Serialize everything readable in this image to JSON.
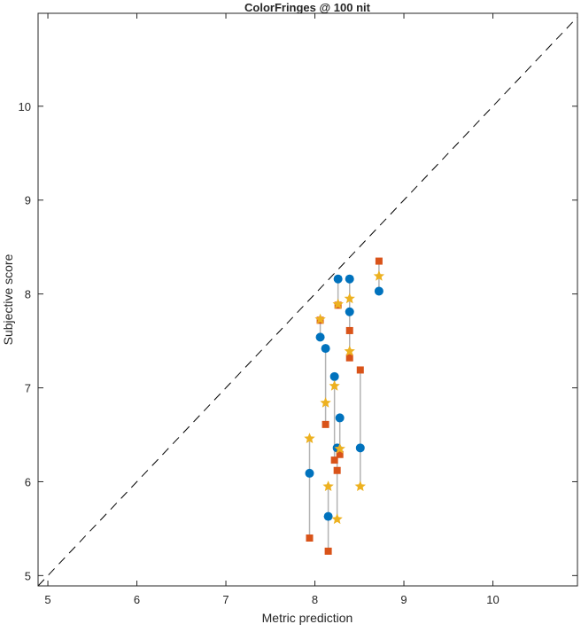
{
  "chart_data": {
    "type": "scatter",
    "title": "ColorFringes @ 100 nit",
    "xlabel": "Metric prediction",
    "ylabel": "Subjective score",
    "xlim": [
      4.89,
      10.95
    ],
    "ylim": [
      4.89,
      10.99
    ],
    "xticks": [
      "5",
      "6",
      "7",
      "8",
      "9",
      "10"
    ],
    "yticks": [
      "5",
      "6",
      "7",
      "8",
      "9",
      "10"
    ],
    "grid": false,
    "reference_line": "y = x (dashed)",
    "series": [
      {
        "name": "circle",
        "marker": "circle",
        "color": "#0072BD",
        "x": [
          7.94,
          8.06,
          8.12,
          8.15,
          8.22,
          8.26,
          8.25,
          8.28,
          8.39,
          8.39,
          8.51,
          8.72
        ],
        "y": [
          6.09,
          7.54,
          7.42,
          5.63,
          7.12,
          8.16,
          6.36,
          6.68,
          8.16,
          7.81,
          6.36,
          8.03
        ]
      },
      {
        "name": "square",
        "marker": "square",
        "color": "#D95319",
        "x": [
          7.94,
          8.06,
          8.12,
          8.15,
          8.22,
          8.26,
          8.25,
          8.28,
          8.39,
          8.39,
          8.51,
          8.72
        ],
        "y": [
          5.4,
          7.72,
          6.61,
          5.26,
          6.23,
          7.88,
          6.12,
          6.29,
          7.61,
          7.32,
          7.19,
          8.35
        ]
      },
      {
        "name": "star",
        "marker": "star",
        "color": "#EDB120",
        "x": [
          7.94,
          8.06,
          8.12,
          8.15,
          8.22,
          8.26,
          8.25,
          8.28,
          8.39,
          8.39,
          8.51,
          8.72
        ],
        "y": [
          6.46,
          7.73,
          6.84,
          5.95,
          7.02,
          7.89,
          5.6,
          6.35,
          7.95,
          7.39,
          5.95,
          8.19
        ]
      }
    ]
  }
}
